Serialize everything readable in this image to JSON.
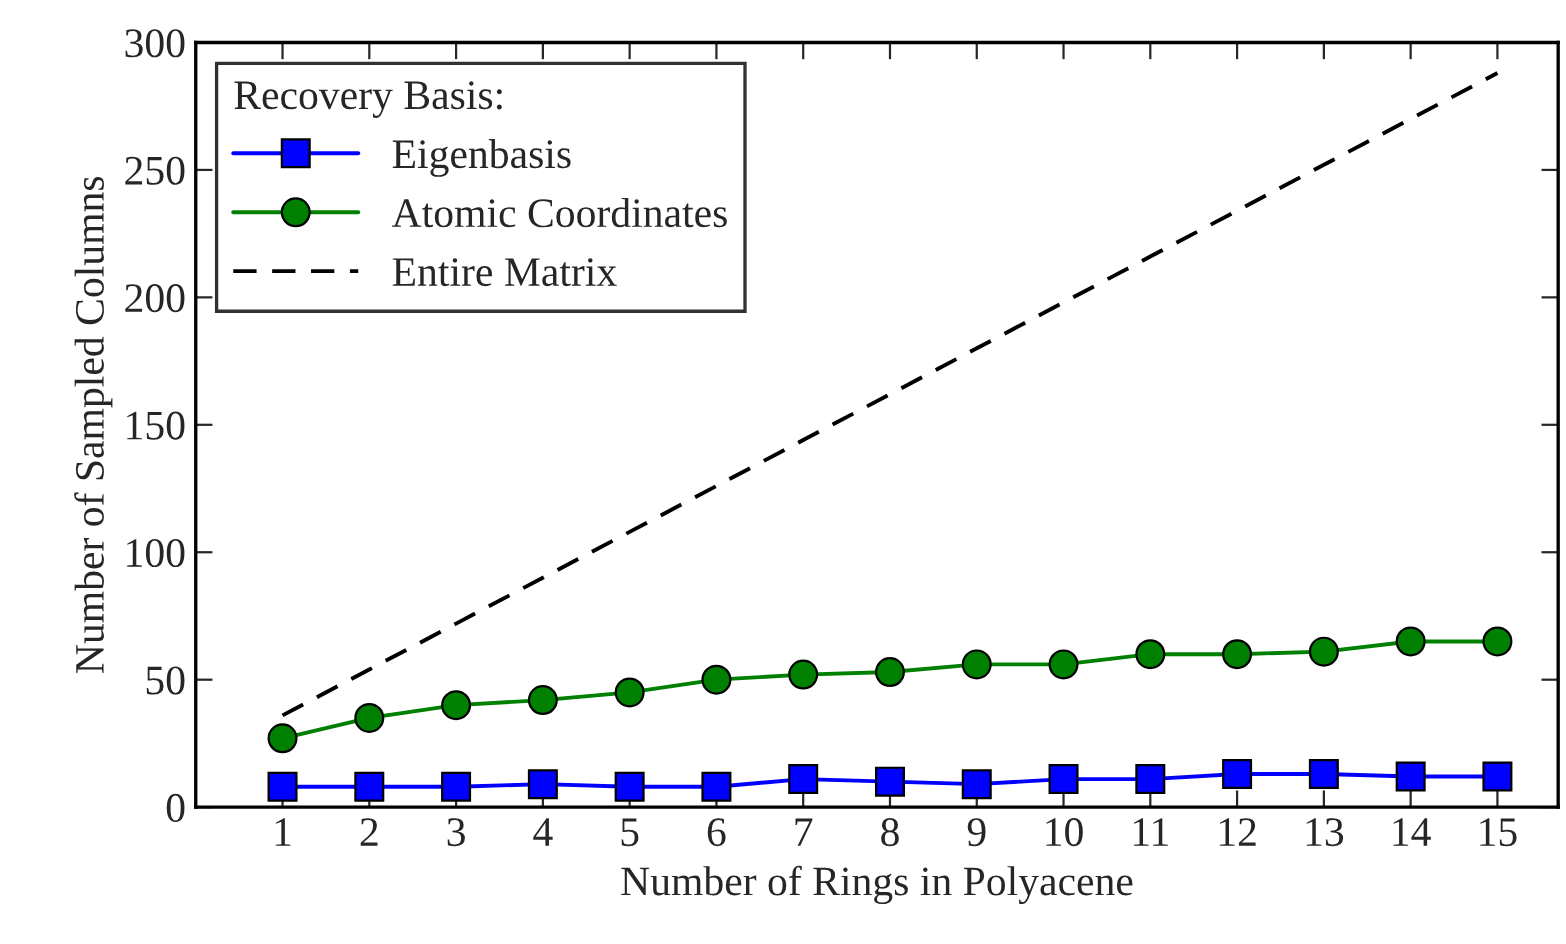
{
  "chart_data": {
    "type": "line",
    "xlabel": "Number of Rings in Polyacene",
    "ylabel": "Number of Sampled Columns",
    "legend_title": "Recovery Basis:",
    "x": [
      1,
      2,
      3,
      4,
      5,
      6,
      7,
      8,
      9,
      10,
      11,
      12,
      13,
      14,
      15
    ],
    "series": [
      {
        "name": "Eigenbasis",
        "color": "#0000ff",
        "marker": "square",
        "line_style": "solid",
        "values": [
          8,
          8,
          8,
          9,
          8,
          8,
          11,
          10,
          9,
          11,
          11,
          13,
          13,
          12,
          12
        ]
      },
      {
        "name": "Atomic Coordinates",
        "color": "#008000",
        "marker": "circle",
        "line_style": "solid",
        "values": [
          27,
          35,
          40,
          42,
          45,
          50,
          52,
          53,
          56,
          56,
          60,
          60,
          61,
          65,
          65
        ]
      },
      {
        "name": "Entire Matrix",
        "color": "#000000",
        "marker": "none",
        "line_style": "dashed",
        "values": [
          36,
          54,
          72,
          90,
          108,
          126,
          144,
          162,
          180,
          198,
          216,
          234,
          252,
          270,
          288
        ]
      }
    ],
    "xlim": [
      0,
      15.7
    ],
    "xticks": [
      1,
      2,
      3,
      4,
      5,
      6,
      7,
      8,
      9,
      10,
      11,
      12,
      13,
      14,
      15
    ],
    "ylim": [
      0,
      300
    ],
    "yticks": [
      0,
      50,
      100,
      150,
      200,
      250,
      300
    ],
    "grid": false,
    "legend": "top left"
  }
}
